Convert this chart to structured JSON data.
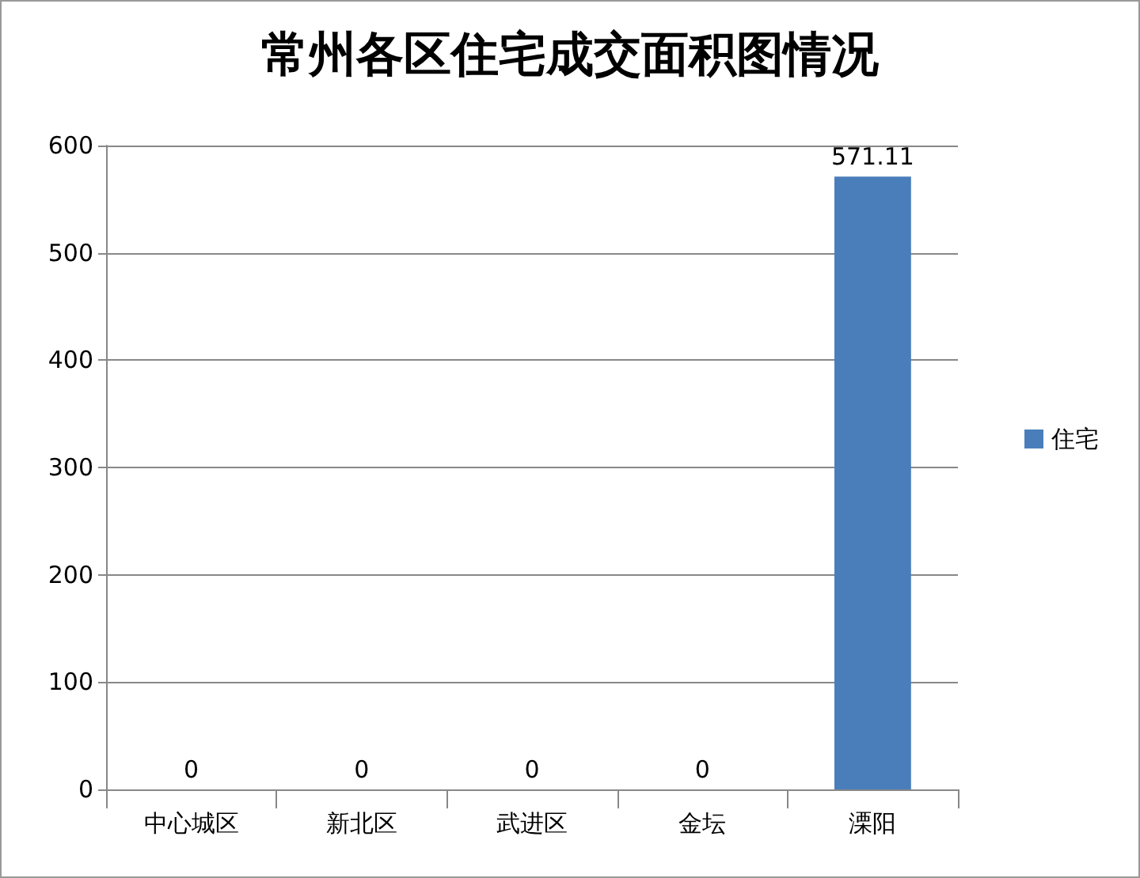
{
  "chart_data": {
    "type": "bar",
    "title": "常州各区住宅成交面积图情况",
    "categories": [
      "中心城区",
      "新北区",
      "武进区",
      "金坛",
      "溧阳"
    ],
    "series": [
      {
        "name": "住宅",
        "color": "#4a7ebb",
        "values": [
          0,
          0,
          0,
          0,
          571.11
        ]
      }
    ],
    "ylim": [
      0,
      600
    ],
    "yticks": [
      0,
      100,
      200,
      300,
      400,
      500,
      600
    ],
    "grid": "y",
    "legend": "right",
    "data_labels": true
  }
}
